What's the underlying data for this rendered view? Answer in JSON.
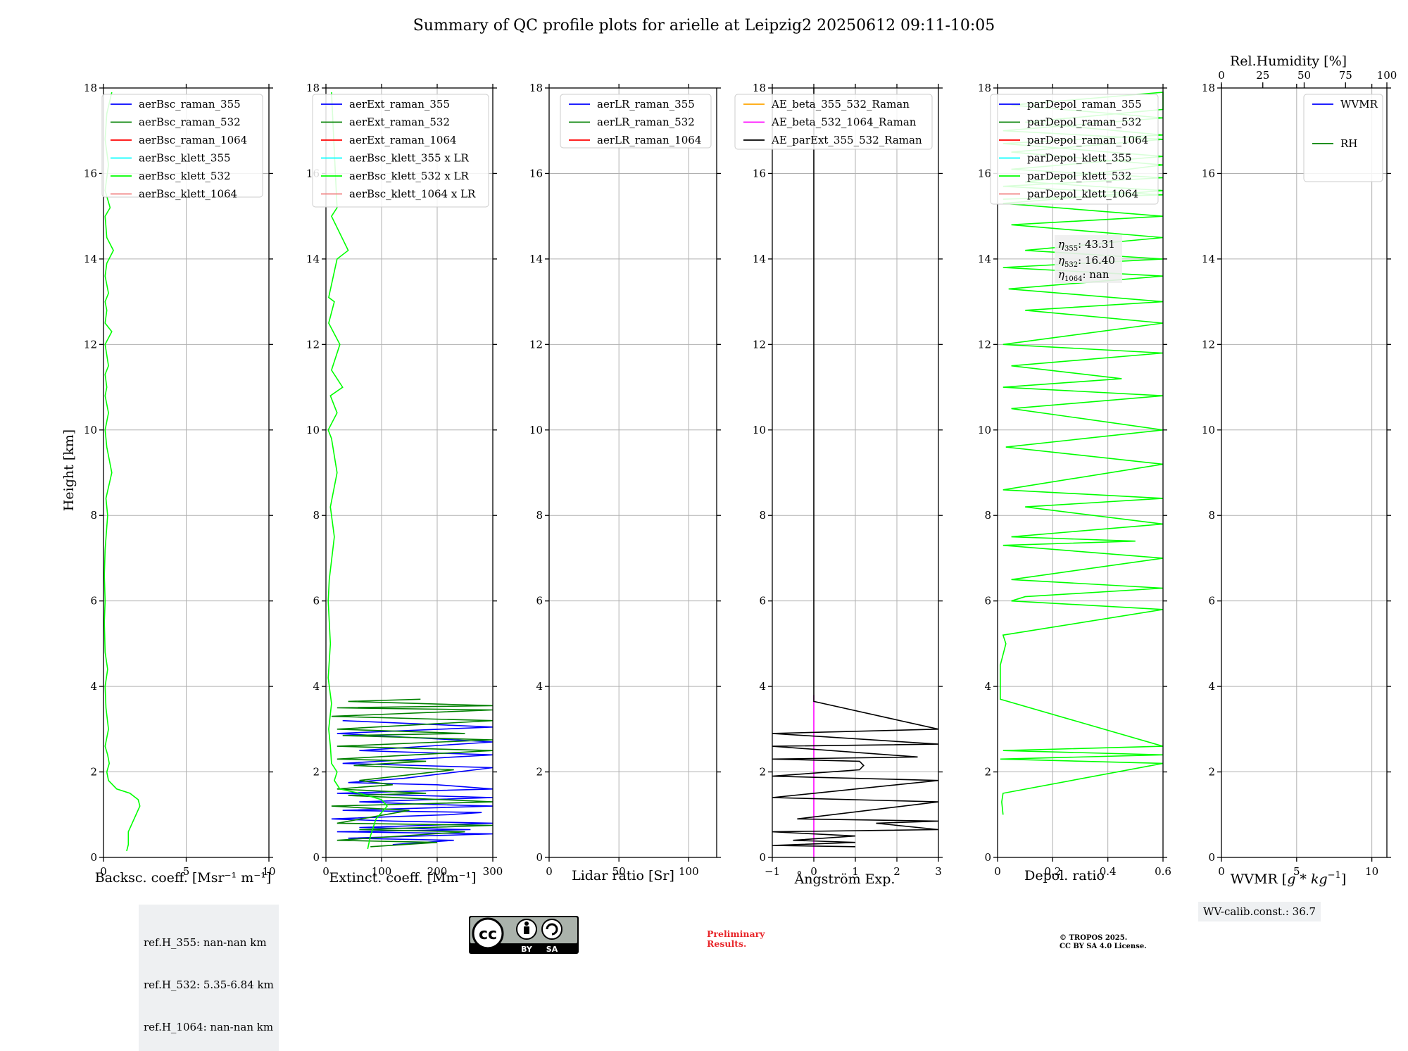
{
  "title": "Summary of QC profile plots for arielle at Leipzig2 20250612 09:11-10:05",
  "common": {
    "ylabel": "Height [km]",
    "ylim": [
      0,
      18
    ],
    "yticks": [
      0,
      2,
      4,
      6,
      8,
      10,
      12,
      14,
      16,
      18
    ]
  },
  "ref_heights": {
    "line_355": "ref.H_355: nan-nan km",
    "line_532": "ref.H_532: 5.35-6.84 km",
    "line_1064": "ref.H_1064: nan-nan km"
  },
  "wv_calib": "WV-calib.const.: 36.7",
  "preliminary": {
    "line1": "Preliminary",
    "line2": "Results."
  },
  "copyright": {
    "line1": "© TROPOS 2025.",
    "line2": "CC BY SA 4.0 License."
  },
  "license_badge": {
    "cc": "cc",
    "by": "BY",
    "sa": "SA"
  },
  "colors": {
    "blue": "#0000ff",
    "green": "#008000",
    "red": "#ff0000",
    "cyan": "#00ffff",
    "lime": "#00ff00",
    "salmon": "#f08080",
    "orange": "#ffa500",
    "magenta": "#ff00ff",
    "black": "#000000",
    "grid": "#b0b0b0"
  },
  "chart_data": [
    {
      "type": "line",
      "panel": "backscatter",
      "xlabel": "Backsc. coeff. [Msr⁻¹ m⁻¹]",
      "xlim": [
        0,
        10
      ],
      "xticks": [
        0,
        5,
        10
      ],
      "legend": [
        "aerBsc_raman_355",
        "aerBsc_raman_532",
        "aerBsc_raman_1064",
        "aerBsc_klett_355",
        "aerBsc_klett_532",
        "aerBsc_klett_1064"
      ],
      "legend_colors": [
        "blue",
        "green",
        "red",
        "cyan",
        "lime",
        "salmon"
      ],
      "legend_position": "upper right",
      "series": [
        {
          "name": "aerBsc_klett_532",
          "color": "lime",
          "x": [
            1.4,
            1.5,
            1.5,
            2.2,
            2.1,
            1.6,
            0.8,
            0.3,
            0.2,
            0.35,
            0.25,
            0.1,
            0.3,
            0.15,
            0.1,
            0.25,
            0.1,
            0.05,
            0.1,
            0.05,
            0.1,
            0.25,
            0.15,
            0.5,
            0.2,
            0.1,
            0.3,
            0.1,
            0.2,
            0.1,
            0.3,
            0.1,
            0.5,
            0.1,
            0.2,
            0.1,
            0.3,
            0.1,
            0.2,
            0.6,
            0.2,
            0.1,
            0.4,
            0.1,
            0.3,
            0.1,
            0.2,
            0.5
          ],
          "y": [
            0.15,
            0.3,
            0.6,
            1.2,
            1.35,
            1.5,
            1.6,
            1.8,
            2.0,
            2.2,
            2.4,
            2.6,
            3.0,
            3.5,
            4.0,
            4.4,
            4.8,
            5.5,
            6.0,
            6.6,
            7.2,
            8.0,
            8.4,
            9.0,
            9.6,
            10.0,
            10.4,
            10.8,
            11.0,
            11.3,
            11.5,
            12.0,
            12.3,
            12.5,
            12.8,
            13.0,
            13.2,
            13.6,
            13.9,
            14.2,
            14.5,
            15.0,
            15.2,
            15.6,
            16.2,
            16.8,
            17.4,
            17.9
          ]
        }
      ]
    },
    {
      "type": "line",
      "panel": "extinction",
      "xlabel": "Extinct. coeff. [Mm⁻¹]",
      "xlim": [
        0,
        300
      ],
      "xticks": [
        0,
        100,
        200,
        300
      ],
      "legend": [
        "aerExt_raman_355",
        "aerExt_raman_532",
        "aerExt_raman_1064",
        "aerBsc_klett_355 x LR",
        "aerBsc_klett_532 x LR",
        "aerBsc_klett_1064 x LR"
      ],
      "legend_colors": [
        "blue",
        "green",
        "red",
        "cyan",
        "lime",
        "salmon"
      ],
      "legend_position": "upper right",
      "series": [
        {
          "name": "aerExt_raman_355",
          "color": "blue",
          "x": [
            120,
            230,
            40,
            170,
            300,
            20,
            260,
            60,
            300,
            120,
            10,
            220,
            280,
            30,
            300,
            160,
            60,
            300,
            20,
            300,
            200,
            40,
            140,
            300,
            30,
            300,
            60,
            300,
            20,
            300,
            30
          ],
          "y": [
            0.3,
            0.4,
            0.45,
            0.5,
            0.55,
            0.6,
            0.65,
            0.7,
            0.8,
            0.85,
            0.9,
            1.0,
            1.05,
            1.1,
            1.2,
            1.25,
            1.3,
            1.4,
            1.5,
            1.6,
            1.7,
            1.75,
            1.85,
            2.1,
            2.2,
            2.4,
            2.5,
            2.7,
            2.9,
            3.05,
            3.2
          ]
        },
        {
          "name": "aerExt_raman_532",
          "color": "green",
          "x": [
            80,
            200,
            20,
            250,
            60,
            300,
            20,
            150,
            10,
            300,
            40,
            180,
            20,
            120,
            60,
            230,
            50,
            180,
            20,
            300,
            20,
            300,
            30,
            250,
            20,
            300,
            10,
            300,
            20,
            300,
            40,
            170
          ],
          "y": [
            0.25,
            0.35,
            0.4,
            0.6,
            0.65,
            0.75,
            0.8,
            1.1,
            1.2,
            1.3,
            1.45,
            1.5,
            1.6,
            1.7,
            1.8,
            2.05,
            2.15,
            2.25,
            2.3,
            2.5,
            2.6,
            2.75,
            2.85,
            2.9,
            3.0,
            3.2,
            3.3,
            3.45,
            3.5,
            3.55,
            3.65,
            3.7
          ]
        },
        {
          "name": "aerBsc_klett_532 x LR",
          "color": "lime",
          "x": [
            75,
            80,
            90,
            110,
            100,
            60,
            25,
            15,
            20,
            10,
            8,
            5,
            10,
            4,
            8,
            4,
            6,
            15,
            8,
            20,
            10,
            4,
            20,
            8,
            30,
            10,
            25,
            5,
            15,
            5,
            20,
            40,
            10,
            20,
            15,
            10
          ],
          "y": [
            0.2,
            0.5,
            0.9,
            1.2,
            1.35,
            1.5,
            1.6,
            1.8,
            2.0,
            2.2,
            2.6,
            3.0,
            3.6,
            4.2,
            5.0,
            6.0,
            6.5,
            7.5,
            8.2,
            9.0,
            9.8,
            10.0,
            10.4,
            10.8,
            11.0,
            11.4,
            12.0,
            12.5,
            13.0,
            13.1,
            14.0,
            14.2,
            15.0,
            15.2,
            16.5,
            17.9
          ]
        }
      ]
    },
    {
      "type": "line",
      "panel": "lidar_ratio",
      "xlabel": "Lidar ratio [Sr]",
      "xlim": [
        0,
        120
      ],
      "xticks": [
        0,
        50,
        100
      ],
      "legend": [
        "aerLR_raman_355",
        "aerLR_raman_532",
        "aerLR_raman_1064"
      ],
      "legend_colors": [
        "blue",
        "green",
        "red"
      ],
      "legend_position": "upper right",
      "series": []
    },
    {
      "type": "line",
      "panel": "angstrom",
      "xlabel": "Ångström Exp.",
      "xlim": [
        -1,
        3
      ],
      "xticks": [
        -1,
        0,
        1,
        2,
        3
      ],
      "legend": [
        "AE_beta_355_532_Raman",
        "AE_beta_532_1064_Raman",
        "AE_parExt_355_532_Raman"
      ],
      "legend_colors": [
        "orange",
        "magenta",
        "black"
      ],
      "legend_position": "upper left",
      "series": [
        {
          "name": "AE_beta_532_1064_Raman",
          "color": "magenta",
          "x": [
            0,
            0
          ],
          "y": [
            0,
            3.8
          ]
        },
        {
          "name": "AE_parExt_355_532_Raman",
          "color": "black",
          "x": [
            1,
            -1,
            1,
            -0.5,
            1,
            -1,
            3,
            1.5,
            3,
            -0.4,
            3,
            -1,
            3,
            -1,
            1.1,
            1.2,
            1.1,
            -1,
            2.5,
            -1,
            3,
            -1,
            3,
            0,
            0,
            0
          ],
          "y": [
            0.25,
            0.28,
            0.35,
            0.4,
            0.5,
            0.6,
            0.65,
            0.8,
            0.85,
            0.9,
            1.3,
            1.4,
            1.8,
            1.9,
            2.05,
            2.15,
            2.25,
            2.3,
            2.35,
            2.6,
            2.65,
            2.9,
            3.0,
            3.65,
            3.8,
            18
          ]
        }
      ]
    },
    {
      "type": "line",
      "panel": "depolarization",
      "xlabel": "Depol. ratio",
      "xlim": [
        0,
        0.6
      ],
      "xticks": [
        0.0,
        0.2,
        0.4,
        0.6
      ],
      "legend": [
        "parDepol_raman_355",
        "parDepol_raman_532",
        "parDepol_raman_1064",
        "parDepol_klett_355",
        "parDepol_klett_532",
        "parDepol_klett_1064"
      ],
      "legend_colors": [
        "blue",
        "green",
        "red",
        "cyan",
        "lime",
        "salmon"
      ],
      "legend_position": "upper right",
      "annotation": {
        "eta355": ": 43.31",
        "eta532": ": 16.40",
        "eta1064": ": nan"
      },
      "series": [
        {
          "name": "parDepol_klett_532",
          "color": "lime",
          "x": [
            0.02,
            0.015,
            0.02,
            0.6,
            0.01,
            0.6,
            0.02,
            0.6,
            0.01,
            0.01,
            0.03,
            0.02,
            0.6,
            0.05,
            0.1,
            0.6,
            0.05,
            0.6,
            0.02,
            0.5,
            0.05,
            0.6,
            0.1,
            0.6,
            0.02,
            0.6,
            0.03,
            0.6,
            0.05,
            0.6,
            0.02,
            0.45,
            0.05,
            0.6,
            0.02,
            0.6,
            0.1,
            0.6,
            0.04,
            0.6,
            0.02,
            0.6,
            0.1,
            0.6,
            0.05,
            0.6,
            0.02,
            0.6,
            0.1,
            0.6,
            0.05,
            0.6,
            0.02,
            0.6,
            0.05,
            0.6,
            0.6,
            0.1,
            0.6,
            0.02,
            0.6,
            0.05,
            0.6,
            0.02,
            0.6,
            0.02
          ],
          "y": [
            1.0,
            1.3,
            1.5,
            2.2,
            2.3,
            2.4,
            2.5,
            2.6,
            3.7,
            4.5,
            5.0,
            5.2,
            5.8,
            6.0,
            6.1,
            6.3,
            6.5,
            7.0,
            7.3,
            7.4,
            7.5,
            7.8,
            8.2,
            8.4,
            8.6,
            9.2,
            9.6,
            10.0,
            10.5,
            10.8,
            11.0,
            11.2,
            11.5,
            11.8,
            12.0,
            12.5,
            12.8,
            13.0,
            13.3,
            13.6,
            13.8,
            14.0,
            14.2,
            14.5,
            14.8,
            15.0,
            15.3,
            15.6,
            15.8,
            16.2,
            16.5,
            16.8,
            17.0,
            17.3,
            17.6,
            17.9,
            17.5,
            17.2,
            16.9,
            16.7,
            16.4,
            16.1,
            15.9,
            15.7,
            15.5,
            15.4
          ]
        }
      ]
    },
    {
      "type": "line",
      "panel": "wvmr",
      "xlabel": "WVMR [g*kg⁻¹]",
      "xlim": [
        0,
        11
      ],
      "xticks": [
        0,
        5,
        10
      ],
      "x2label": "Rel.Humidity [%]",
      "x2lim": [
        0,
        100
      ],
      "x2ticks": [
        0,
        25,
        50,
        75,
        100
      ],
      "legend": [
        "WVMR",
        "RH"
      ],
      "legend_colors": [
        "blue",
        "green"
      ],
      "legend_position": "upper right",
      "series": []
    }
  ]
}
